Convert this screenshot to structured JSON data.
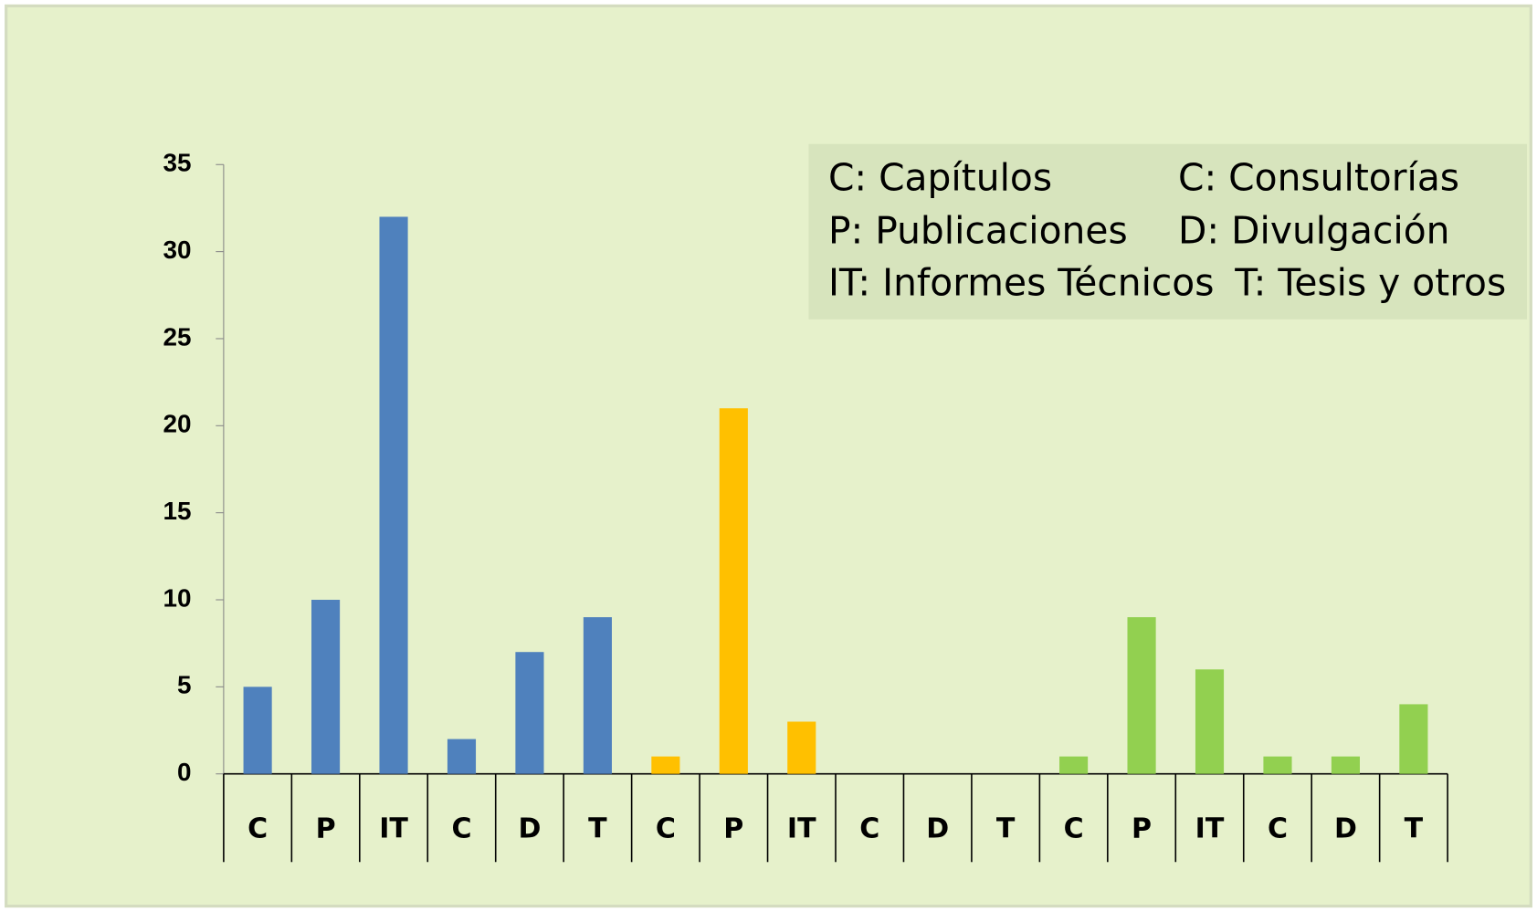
{
  "chart_data": {
    "type": "bar",
    "categories": [
      "C",
      "P",
      "IT",
      "C",
      "D",
      "T",
      "C",
      "P",
      "IT",
      "C",
      "D",
      "T",
      "C",
      "P",
      "IT",
      "C",
      "D",
      "T"
    ],
    "values": [
      5,
      10,
      32,
      2,
      7,
      9,
      1,
      21,
      3,
      0,
      0,
      0,
      1,
      9,
      6,
      1,
      1,
      4
    ],
    "colors": [
      "#4f81bd",
      "#4f81bd",
      "#4f81bd",
      "#4f81bd",
      "#4f81bd",
      "#4f81bd",
      "#ffc000",
      "#ffc000",
      "#ffc000",
      "#ffc000",
      "#ffc000",
      "#ffc000",
      "#92d050",
      "#92d050",
      "#92d050",
      "#92d050",
      "#92d050",
      "#92d050"
    ],
    "ylim": [
      0,
      35
    ],
    "yticks": [
      0,
      5,
      10,
      15,
      20,
      25,
      30,
      35
    ],
    "legend_text": [
      "C: Capítulos",
      "C: Consultorías",
      "P: Publicaciones",
      "D: Divulgación",
      "IT: Informes Técnicos",
      "T: Tesis y otros"
    ]
  }
}
